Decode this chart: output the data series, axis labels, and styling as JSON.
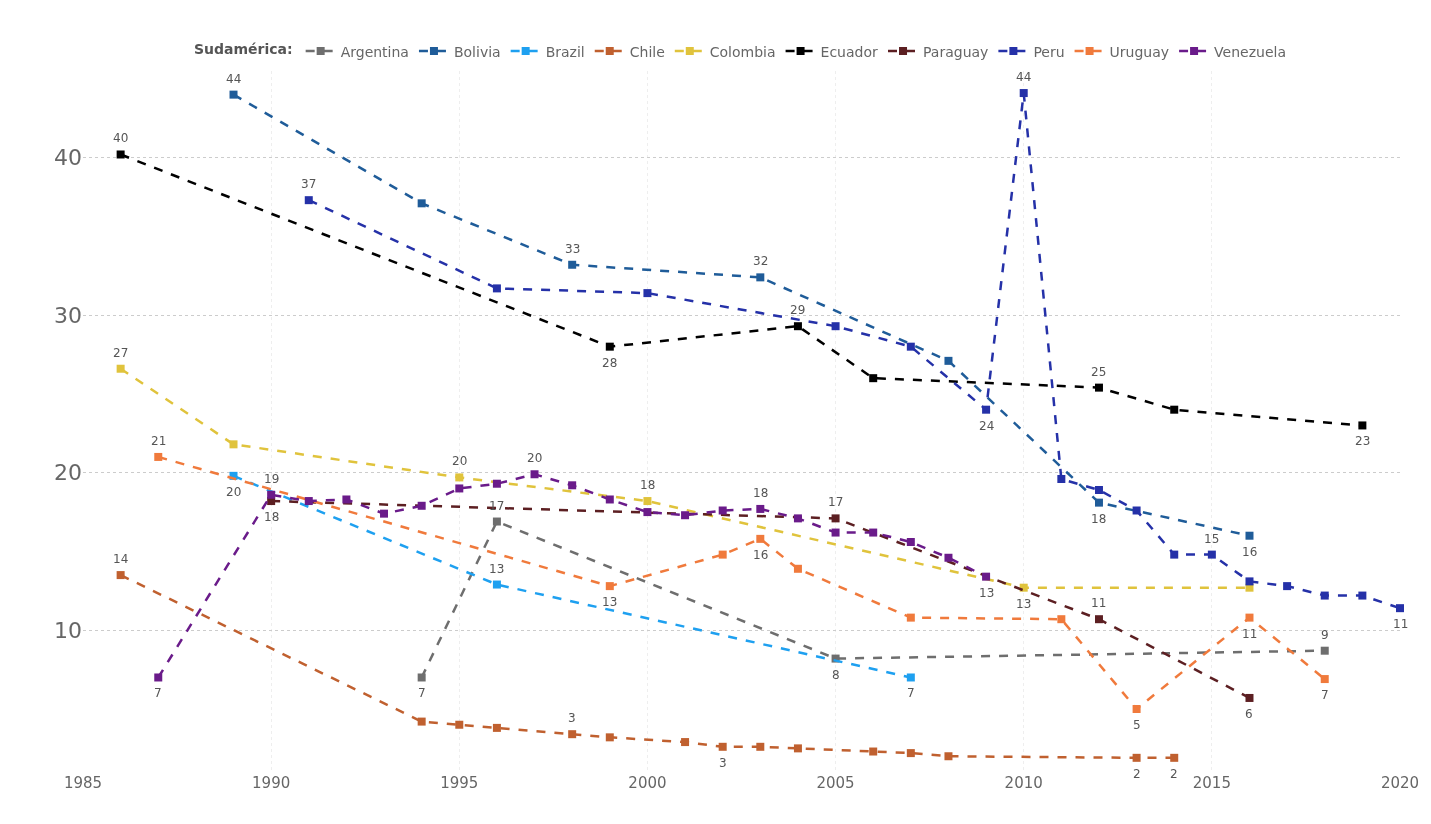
{
  "chart_data": {
    "type": "line",
    "legend_title": "Sudamérica:",
    "legend": "top",
    "grid": true,
    "marker": "square",
    "line_style": "dashed",
    "xlim": [
      1985,
      2020
    ],
    "xticks": [
      1985,
      1990,
      1995,
      2000,
      2005,
      2010,
      2015,
      2020
    ],
    "ylim": [
      1,
      45.5
    ],
    "yticks": [
      10,
      20,
      30,
      40
    ],
    "series": [
      {
        "name": "Argentina",
        "color": "#6e6e6e",
        "x": [
          1994,
          1996,
          2005,
          2018
        ],
        "values": [
          7.0,
          16.9,
          8.2,
          8.7
        ],
        "value_labels": [
          "7",
          "17",
          "8",
          "9"
        ]
      },
      {
        "name": "Bolivia",
        "color": "#1f5c99",
        "x": [
          1989,
          1994,
          1998,
          2003,
          2008,
          2012,
          2016
        ],
        "values": [
          44.0,
          37.1,
          33.2,
          32.4,
          27.1,
          18.1,
          16.0
        ],
        "value_labels": [
          "44",
          null,
          "33",
          "32",
          null,
          "18",
          "16"
        ]
      },
      {
        "name": "Brazil",
        "color": "#1ea0f0",
        "x": [
          1989,
          1991,
          1996,
          2007
        ],
        "values": [
          19.8,
          null,
          12.9,
          7.0
        ],
        "value_labels": [
          "20",
          null,
          "13",
          "7"
        ]
      },
      {
        "name": "Chile",
        "color": "#c0602f",
        "x": [
          1986,
          1994,
          1995,
          1996,
          1998,
          1999,
          2001,
          2002,
          2003,
          2004,
          2006,
          2007,
          2008,
          2013,
          2014
        ],
        "values": [
          13.5,
          4.2,
          4.0,
          3.8,
          3.4,
          3.2,
          2.9,
          2.6,
          2.6,
          2.5,
          2.3,
          2.2,
          2.0,
          1.9,
          1.9
        ],
        "value_labels": [
          "14",
          null,
          null,
          null,
          "3",
          null,
          null,
          "3",
          null,
          null,
          null,
          null,
          null,
          "2",
          "2"
        ]
      },
      {
        "name": "Colombia",
        "color": "#e0c33c",
        "x": [
          1986,
          1989,
          1995,
          2000,
          2005,
          2010,
          2016
        ],
        "values": [
          26.6,
          21.8,
          19.7,
          18.2,
          null,
          12.7,
          12.7
        ],
        "value_labels": [
          "27",
          null,
          "20",
          "18",
          null,
          "13",
          null
        ]
      },
      {
        "name": "Ecuador",
        "color": "#000000",
        "x": [
          1986,
          1999,
          2004,
          2006,
          2012,
          2014,
          2019
        ],
        "values": [
          40.2,
          28.0,
          29.3,
          26.0,
          25.4,
          24.0,
          23.0
        ],
        "value_labels": [
          "40",
          "28",
          "29",
          null,
          "25",
          null,
          "23"
        ]
      },
      {
        "name": "Paraguay",
        "color": "#5c1f22",
        "x": [
          1990,
          2005,
          2009,
          2012,
          2016
        ],
        "values": [
          18.2,
          17.1,
          null,
          10.7,
          5.7
        ],
        "value_labels": [
          "18",
          "17",
          null,
          "11",
          "6"
        ]
      },
      {
        "name": "Peru",
        "color": "#2531a8",
        "x": [
          1991,
          1996,
          2000,
          2005,
          2007,
          2009,
          2010,
          2011,
          2012,
          2013,
          2014,
          2015,
          2016,
          2017,
          2018,
          2019,
          2020
        ],
        "values": [
          37.3,
          31.7,
          31.4,
          29.3,
          28.0,
          24.0,
          44.1,
          19.6,
          18.9,
          17.6,
          14.8,
          14.8,
          13.1,
          12.8,
          12.2,
          12.2,
          11.4
        ],
        "value_labels": [
          "37",
          null,
          null,
          null,
          null,
          "24",
          "44",
          null,
          null,
          null,
          null,
          "15",
          null,
          null,
          null,
          null,
          "11"
        ]
      },
      {
        "name": "Uruguay",
        "color": "#f07a3c",
        "x": [
          1987,
          1999,
          2002,
          2003,
          2004,
          2007,
          2011,
          2013,
          2016,
          2018
        ],
        "values": [
          21.0,
          12.8,
          14.8,
          15.8,
          13.9,
          10.8,
          10.7,
          5.0,
          10.8,
          6.9
        ],
        "value_labels": [
          "21",
          "13",
          null,
          "16",
          null,
          null,
          null,
          "5",
          "11",
          "7"
        ]
      },
      {
        "name": "Venezuela",
        "color": "#6a1b8a",
        "x": [
          1987,
          1990,
          1991,
          1992,
          1993,
          1994,
          1995,
          1996,
          1997,
          1998,
          1999,
          2000,
          2001,
          2002,
          2003,
          2004,
          2005,
          2006,
          2007,
          2008,
          2009
        ],
        "values": [
          7.0,
          18.6,
          18.2,
          18.3,
          17.4,
          17.9,
          19.0,
          19.3,
          19.9,
          19.2,
          18.3,
          17.5,
          17.3,
          17.6,
          17.7,
          17.1,
          16.2,
          16.2,
          15.6,
          14.6,
          13.4
        ],
        "value_labels": [
          "7",
          "19",
          null,
          null,
          null,
          null,
          null,
          null,
          "20",
          null,
          null,
          null,
          null,
          null,
          "18",
          null,
          null,
          null,
          null,
          null,
          "13"
        ]
      }
    ]
  }
}
